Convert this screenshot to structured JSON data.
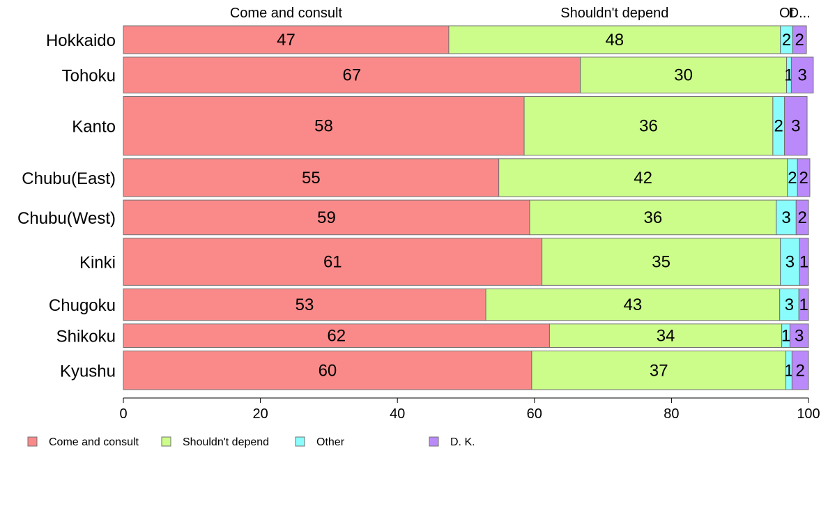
{
  "chart_data": {
    "type": "bar",
    "orientation": "horizontal",
    "stacked": true,
    "categories": [
      "Hokkaido",
      "Tohoku",
      "Kanto",
      "Chubu(East)",
      "Chubu(West)",
      "Kinki",
      "Chugoku",
      "Shikoku",
      "Kyushu"
    ],
    "series": [
      {
        "name": "Come and consult",
        "color": "#fa8a8a",
        "values": [
          47.5,
          66.7,
          58.5,
          54.8,
          59.3,
          61.1,
          52.9,
          62.2,
          59.6
        ]
      },
      {
        "name": "Shouldn't depend",
        "color": "#ccfc8a",
        "values": [
          48.4,
          30.1,
          36.3,
          42.1,
          36.0,
          34.8,
          42.9,
          33.9,
          37.1
        ]
      },
      {
        "name": "Other",
        "color": "#8afcfc",
        "values": [
          1.8,
          0.7,
          1.7,
          1.5,
          2.9,
          2.8,
          2.8,
          1.2,
          0.9
        ]
      },
      {
        "name": "D. K.",
        "color": "#ba8afa",
        "values": [
          2.0,
          3.2,
          3.3,
          1.8,
          1.8,
          1.3,
          1.4,
          2.7,
          2.4
        ]
      }
    ],
    "column_headers": [
      "Come and consult",
      "Shouldn't depend",
      "Ot",
      "D..."
    ],
    "data_labels": [
      [
        "47",
        "48",
        "2",
        "2"
      ],
      [
        "67",
        "30",
        "1",
        "3"
      ],
      [
        "58",
        "36",
        "2",
        "3"
      ],
      [
        "55",
        "42",
        "2",
        "2"
      ],
      [
        "59",
        "36",
        "3",
        "2"
      ],
      [
        "61",
        "35",
        "3",
        "1"
      ],
      [
        "53",
        "43",
        "3",
        "1"
      ],
      [
        "62",
        "34",
        "1",
        "3"
      ],
      [
        "60",
        "37",
        "1",
        "2"
      ]
    ],
    "bar_weights": [
      373,
      481,
      787,
      507,
      464,
      631,
      424,
      315,
      518
    ],
    "xlim": [
      0,
      100
    ],
    "xticks": [
      0,
      20,
      40,
      60,
      80,
      100
    ],
    "xtick_labels": [
      "0",
      "20",
      "40",
      "60",
      "80",
      "100"
    ],
    "legend": {
      "placement": "bottom-left",
      "entries": [
        "Come and consult",
        "Shouldn't depend",
        "Other",
        "D. K."
      ]
    },
    "grid": false
  }
}
